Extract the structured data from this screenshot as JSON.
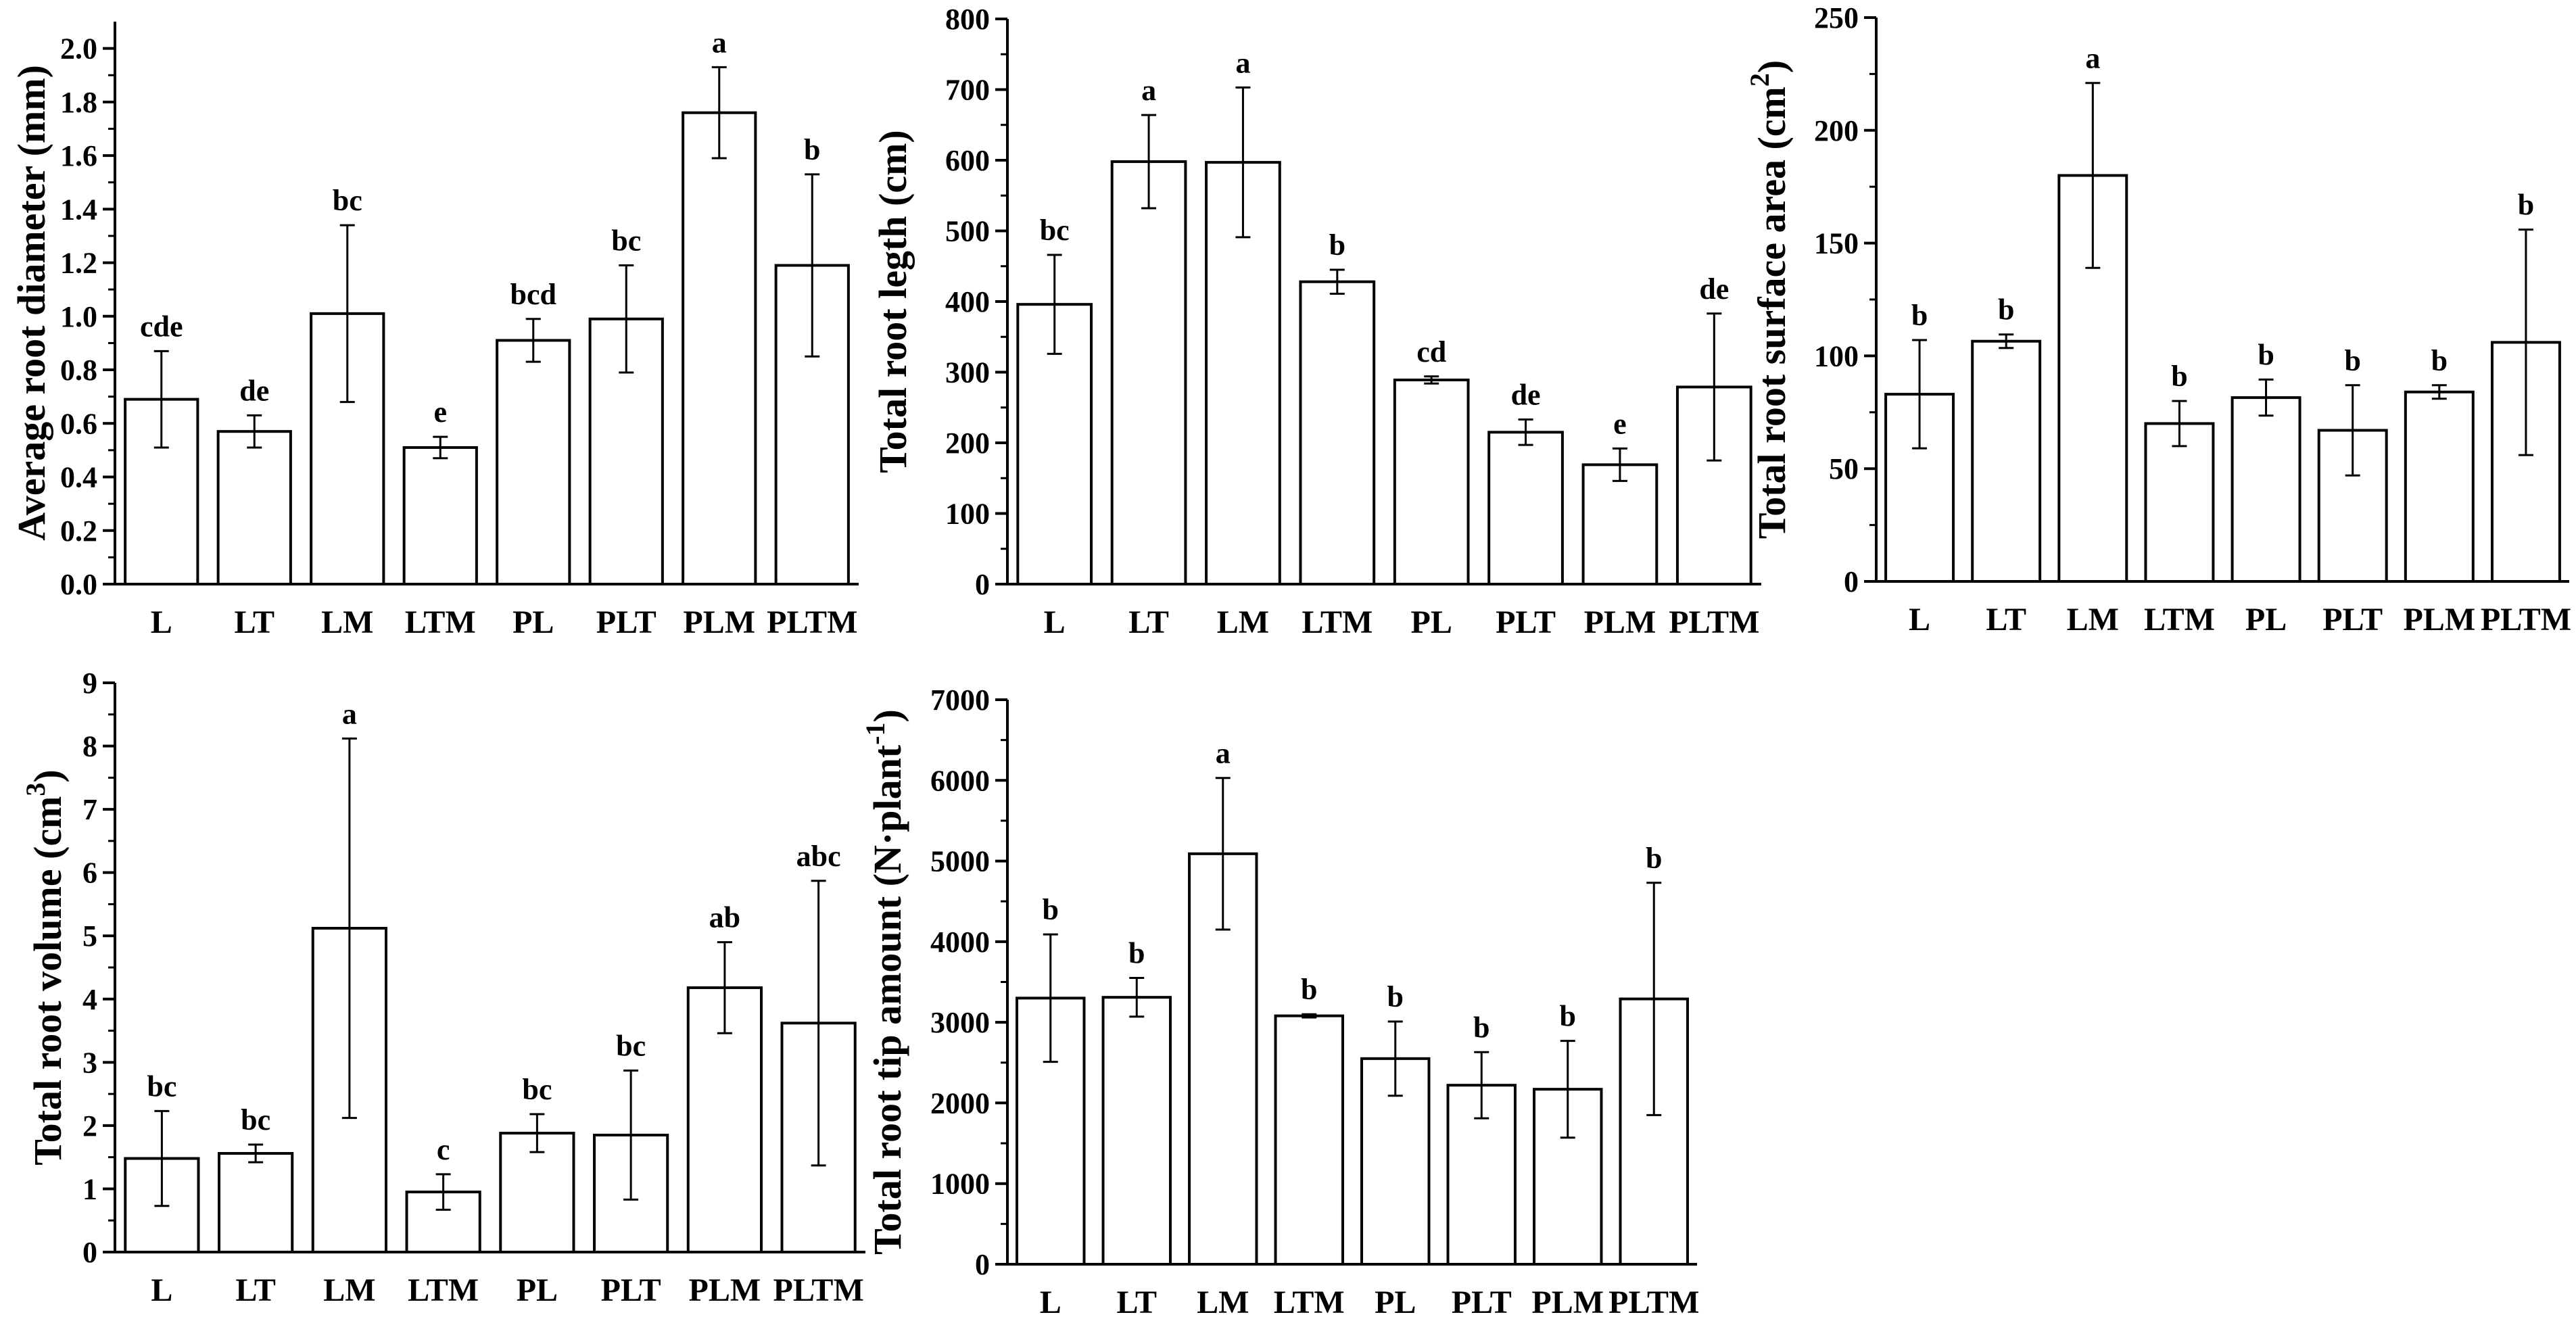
{
  "figure": {
    "description_label": "Root morphology panels"
  },
  "chart_data": [
    {
      "type": "bar",
      "ylabel": "Average root diameter (mm)",
      "ylabel_sup": "",
      "ylabel_after": "",
      "categories": [
        "L",
        "LT",
        "LM",
        "LTM",
        "PL",
        "PLT",
        "PLM",
        "PLTM"
      ],
      "values": [
        0.69,
        0.57,
        1.01,
        0.51,
        0.91,
        0.99,
        1.76,
        1.19
      ],
      "errors": [
        0.18,
        0.06,
        0.33,
        0.04,
        0.08,
        0.2,
        0.17,
        0.34
      ],
      "letters": [
        "cde",
        "de",
        "bc",
        "e",
        "bcd",
        "bc",
        "a",
        "b"
      ],
      "ylim": [
        0,
        2.1
      ],
      "ticks": [
        0.0,
        0.2,
        0.4,
        0.6,
        0.8,
        1.0,
        1.2,
        1.4,
        1.6,
        1.8,
        2.0
      ],
      "tick_labels": [
        "0.0",
        "0.2",
        "0.4",
        "0.6",
        "0.8",
        "1.0",
        "1.2",
        "1.4",
        "1.6",
        "1.8",
        "2.0"
      ],
      "minor_ticks": [
        0.1,
        0.3,
        0.5,
        0.7,
        0.9,
        1.1,
        1.3,
        1.5,
        1.7,
        1.9
      ]
    },
    {
      "type": "bar",
      "ylabel": "Total root legth (cm)",
      "ylabel_sup": "",
      "ylabel_after": "",
      "categories": [
        "L",
        "LT",
        "LM",
        "LTM",
        "PL",
        "PLT",
        "PLM",
        "PLTM"
      ],
      "values": [
        396,
        598,
        597,
        428,
        289,
        215,
        169,
        279
      ],
      "errors": [
        70,
        66,
        106,
        17,
        5,
        18,
        23,
        104
      ],
      "letters": [
        "bc",
        "a",
        "a",
        "b",
        "cd",
        "de",
        "e",
        "de"
      ],
      "ylim": [
        0,
        800
      ],
      "ticks": [
        0,
        100,
        200,
        300,
        400,
        500,
        600,
        700,
        800
      ],
      "tick_labels": [
        "0",
        "100",
        "200",
        "300",
        "400",
        "500",
        "600",
        "700",
        "800"
      ],
      "minor_ticks": [
        50,
        150,
        250,
        350,
        450,
        550,
        650,
        750
      ]
    },
    {
      "type": "bar",
      "ylabel": "Total root surface area (cm",
      "ylabel_sup": "2",
      "ylabel_after": ")",
      "categories": [
        "L",
        "LT",
        "LM",
        "LTM",
        "PL",
        "PLT",
        "PLM",
        "PLTM"
      ],
      "values": [
        83,
        106.5,
        180,
        70,
        81.5,
        67,
        84,
        106
      ],
      "errors": [
        24,
        3,
        41,
        10,
        8,
        20,
        3,
        50
      ],
      "letters": [
        "b",
        "b",
        "a",
        "b",
        "b",
        "b",
        "b",
        "b"
      ],
      "ylim": [
        0,
        250
      ],
      "ticks": [
        0,
        50,
        100,
        150,
        200,
        250
      ],
      "tick_labels": [
        "0",
        "50",
        "100",
        "150",
        "200",
        "250"
      ],
      "minor_ticks": [
        25,
        75,
        125,
        175,
        225
      ]
    },
    {
      "type": "bar",
      "ylabel": "Total  root volume (cm",
      "ylabel_sup": "3",
      "ylabel_after": ")",
      "categories": [
        "L",
        "LT",
        "LM",
        "LTM",
        "PL",
        "PLT",
        "PLM",
        "PLTM"
      ],
      "values": [
        1.48,
        1.56,
        5.12,
        0.95,
        1.88,
        1.85,
        4.18,
        3.62
      ],
      "errors": [
        0.75,
        0.14,
        3.0,
        0.28,
        0.3,
        1.02,
        0.72,
        2.25
      ],
      "letters": [
        "bc",
        "bc",
        "a",
        "c",
        "bc",
        "bc",
        "ab",
        "abc"
      ],
      "ylim": [
        0,
        9
      ],
      "ticks": [
        0,
        1,
        2,
        3,
        4,
        5,
        6,
        7,
        8,
        9
      ],
      "tick_labels": [
        "0",
        "1",
        "2",
        "3",
        "4",
        "5",
        "6",
        "7",
        "8",
        "9"
      ],
      "minor_ticks": [
        0.5,
        1.5,
        2.5,
        3.5,
        4.5,
        5.5,
        6.5,
        7.5,
        8.5
      ]
    },
    {
      "type": "bar",
      "ylabel": "Total root tip amount (N·plant",
      "ylabel_sup": "-1",
      "ylabel_after": ")",
      "categories": [
        "L",
        "LT",
        "LM",
        "LTM",
        "PL",
        "PLT",
        "PLM",
        "PLTM"
      ],
      "values": [
        3300,
        3310,
        5090,
        3080,
        2550,
        2220,
        2170,
        3290
      ],
      "errors": [
        790,
        240,
        940,
        20,
        460,
        410,
        600,
        1440
      ],
      "letters": [
        "b",
        "b",
        "a",
        "b",
        "b",
        "b",
        "b",
        "b"
      ],
      "ylim": [
        0,
        7000
      ],
      "ticks": [
        0,
        1000,
        2000,
        3000,
        4000,
        5000,
        6000,
        7000
      ],
      "tick_labels": [
        "0",
        "1000",
        "2000",
        "3000",
        "4000",
        "5000",
        "6000",
        "7000"
      ],
      "minor_ticks": [
        500,
        1500,
        2500,
        3500,
        4500,
        5500,
        6500
      ]
    }
  ]
}
